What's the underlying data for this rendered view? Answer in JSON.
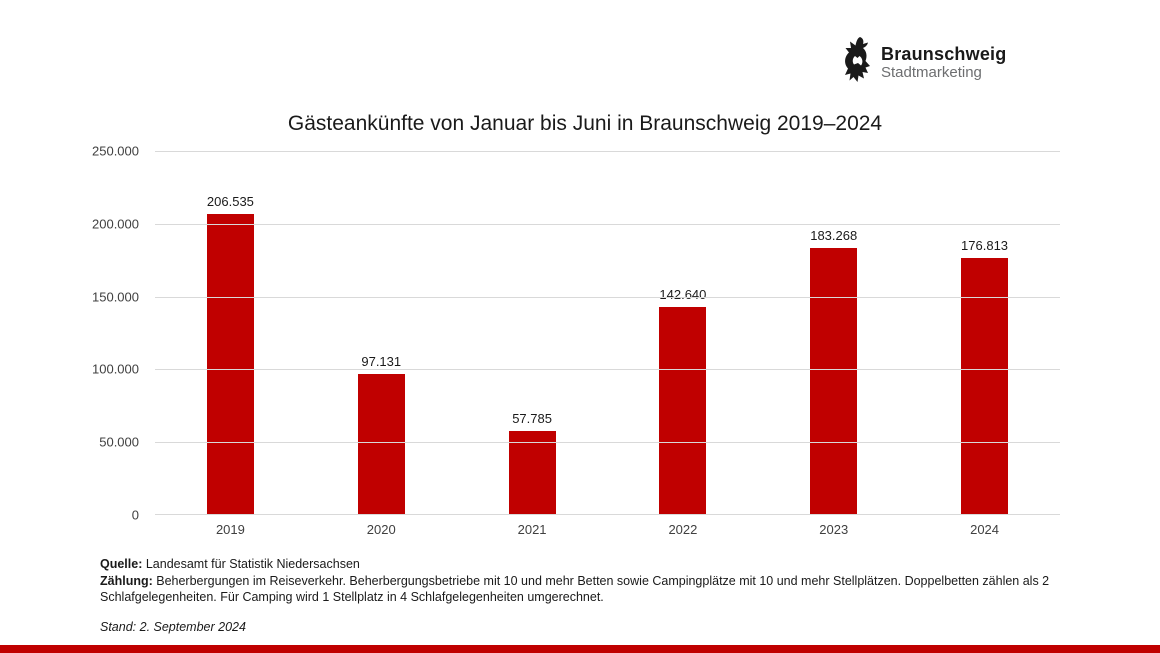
{
  "logo": {
    "brand": "Braunschweig",
    "sub": "Stadtmarketing"
  },
  "chart_data": {
    "type": "bar",
    "title": "Gästeankünfte von Januar bis Juni in Braunschweig 2019–2024",
    "categories": [
      "2019",
      "2020",
      "2021",
      "2022",
      "2023",
      "2024"
    ],
    "values": [
      206535,
      97131,
      57785,
      142640,
      183268,
      176813
    ],
    "value_labels": [
      "206.535",
      "97.131",
      "57.785",
      "142.640",
      "183.268",
      "176.813"
    ],
    "xlabel": "",
    "ylabel": "",
    "ylim": [
      0,
      250000
    ],
    "ytick_labels": [
      "250.000",
      "200.000",
      "150.000",
      "100.000",
      "50.000",
      "0"
    ],
    "grid": true,
    "legend": "none",
    "bar_color": "#c00000"
  },
  "footer": {
    "source_label": "Quelle:",
    "source_text": " Landesamt für Statistik Niedersachsen",
    "counting_label": "Zählung:",
    "counting_text": " Beherbergungen im Reiseverkehr. Beherbergungsbetriebe mit 10 und mehr Betten sowie Campingplätze mit 10 und mehr Stellplätzen. Doppelbetten zählen als 2 Schlafgelegenheiten. Für Camping wird 1 Stellplatz in 4 Schlafgelegenheiten umgerechnet.",
    "stand": "Stand: 2. September 2024"
  },
  "colors": {
    "accent": "#c00000",
    "grid": "#d9d9d9",
    "sub_text": "#6d6e70"
  }
}
